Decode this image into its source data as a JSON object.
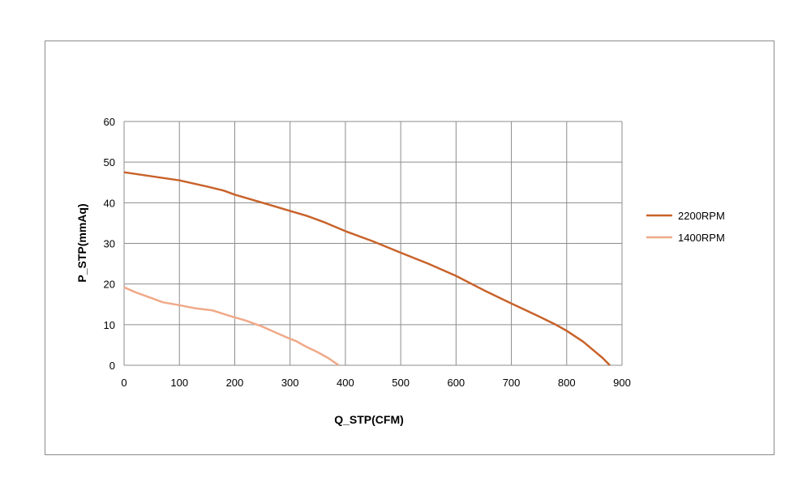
{
  "chart_data": {
    "type": "line",
    "title": "",
    "xlabel": "Q_STP(CFM)",
    "ylabel": "P_STP(mmAq)",
    "xlim": [
      0,
      900
    ],
    "ylim": [
      0,
      60
    ],
    "x_ticks": [
      0,
      100,
      200,
      300,
      400,
      500,
      600,
      700,
      800,
      900
    ],
    "y_ticks": [
      0,
      10,
      20,
      30,
      40,
      50,
      60
    ],
    "grid": true,
    "legend_position": "right",
    "series": [
      {
        "name": "2200RPM",
        "color": "#c8622a",
        "points": [
          [
            0,
            47.5
          ],
          [
            50,
            46.5
          ],
          [
            100,
            45.5
          ],
          [
            150,
            44
          ],
          [
            180,
            43
          ],
          [
            200,
            42
          ],
          [
            250,
            40
          ],
          [
            300,
            38
          ],
          [
            330,
            36.8
          ],
          [
            360,
            35.3
          ],
          [
            400,
            33
          ],
          [
            450,
            30.5
          ],
          [
            500,
            27.7
          ],
          [
            550,
            25
          ],
          [
            600,
            22
          ],
          [
            650,
            18.5
          ],
          [
            700,
            15.2
          ],
          [
            750,
            12
          ],
          [
            780,
            10
          ],
          [
            800,
            8.5
          ],
          [
            830,
            5.8
          ],
          [
            850,
            3.5
          ],
          [
            865,
            1.8
          ],
          [
            878,
            0
          ]
        ]
      },
      {
        "name": "1400RPM",
        "color": "#f0a988",
        "points": [
          [
            0,
            19.2
          ],
          [
            20,
            18
          ],
          [
            40,
            17
          ],
          [
            70,
            15.5
          ],
          [
            100,
            14.8
          ],
          [
            130,
            14
          ],
          [
            160,
            13.5
          ],
          [
            190,
            12.2
          ],
          [
            220,
            11
          ],
          [
            250,
            9.5
          ],
          [
            275,
            8
          ],
          [
            295,
            6.8
          ],
          [
            310,
            6
          ],
          [
            330,
            4.5
          ],
          [
            350,
            3.2
          ],
          [
            370,
            1.7
          ],
          [
            388,
            0
          ]
        ]
      }
    ]
  }
}
